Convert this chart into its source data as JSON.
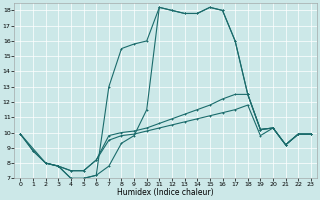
{
  "xlabel": "Humidex (Indice chaleur)",
  "ylabel": "",
  "xlim": [
    -0.5,
    23.5
  ],
  "ylim": [
    7,
    18.5
  ],
  "xticks": [
    0,
    1,
    2,
    3,
    4,
    5,
    6,
    7,
    8,
    9,
    10,
    11,
    12,
    13,
    14,
    15,
    16,
    17,
    18,
    19,
    20,
    21,
    22,
    23
  ],
  "yticks": [
    7,
    8,
    9,
    10,
    11,
    12,
    13,
    14,
    15,
    16,
    17,
    18
  ],
  "bg_color": "#cce8e8",
  "line_color": "#1a6b6b",
  "line1_x": [
    0,
    1,
    2,
    3,
    4,
    5,
    6,
    7,
    8,
    9,
    10,
    11,
    12,
    13,
    14,
    15,
    16,
    17,
    18,
    19,
    20,
    21,
    22,
    23
  ],
  "line1_y": [
    9.9,
    8.8,
    8.0,
    7.8,
    7.0,
    7.0,
    7.2,
    7.8,
    9.3,
    9.8,
    11.5,
    18.2,
    18.0,
    17.8,
    17.8,
    18.2,
    18.0,
    16.0,
    12.5,
    10.2,
    10.3,
    9.2,
    9.9,
    9.9
  ],
  "line2_x": [
    0,
    2,
    3,
    4,
    5,
    6,
    7,
    8,
    9,
    10,
    11,
    12,
    13,
    14,
    15,
    16,
    17,
    18,
    19,
    20,
    21,
    22,
    23
  ],
  "line2_y": [
    9.9,
    8.0,
    7.8,
    7.5,
    7.5,
    8.2,
    9.8,
    10.0,
    10.1,
    10.3,
    10.6,
    10.9,
    11.2,
    11.5,
    11.8,
    12.2,
    12.5,
    12.5,
    10.2,
    10.3,
    9.2,
    9.9,
    9.9
  ],
  "line3_x": [
    0,
    1,
    2,
    3,
    4,
    5,
    6,
    7,
    8,
    9,
    10,
    11,
    12,
    13,
    14,
    15,
    16,
    17,
    18,
    19,
    20,
    21,
    22,
    23
  ],
  "line3_y": [
    9.9,
    8.8,
    8.0,
    7.8,
    7.5,
    7.5,
    8.2,
    9.5,
    9.8,
    9.9,
    10.1,
    10.3,
    10.5,
    10.7,
    10.9,
    11.1,
    11.3,
    11.5,
    11.8,
    9.8,
    10.3,
    9.2,
    9.9,
    9.9
  ],
  "line4_x": [
    2,
    3,
    4,
    5,
    6,
    7,
    8,
    9,
    10,
    11,
    12,
    13,
    14,
    15,
    16,
    17,
    18,
    19,
    20,
    21,
    22,
    23
  ],
  "line4_y": [
    8.0,
    7.8,
    7.0,
    7.0,
    7.2,
    13.0,
    15.5,
    15.8,
    16.0,
    18.2,
    18.0,
    17.8,
    17.8,
    18.2,
    18.0,
    16.0,
    12.5,
    10.2,
    10.3,
    9.2,
    9.9,
    9.9
  ]
}
